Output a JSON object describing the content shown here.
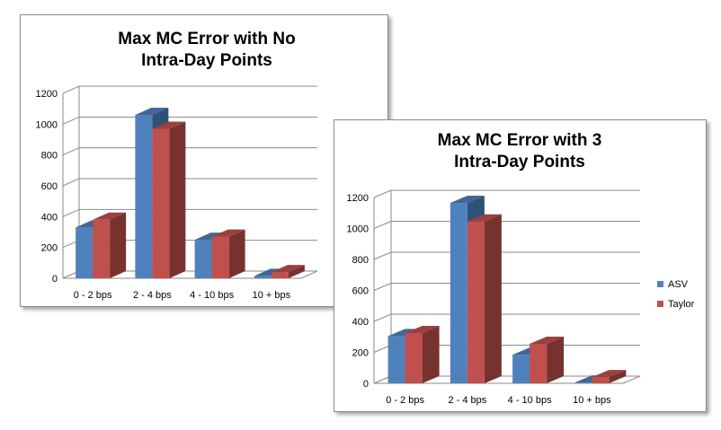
{
  "colors": {
    "asv": "#4f81bd",
    "taylor": "#c0504d"
  },
  "chart_data": [
    {
      "type": "bar",
      "title_lines": [
        "Max MC Error with No",
        "Intra-Day Points"
      ],
      "categories": [
        "0 - 2 bps",
        "2 - 4 bps",
        "4 - 10 bps",
        "10 + bps"
      ],
      "y_ticks": [
        "0",
        "200",
        "400",
        "600",
        "800",
        "1000",
        "1200"
      ],
      "ylim": [
        0,
        1200
      ],
      "grid": true,
      "legend": null,
      "series": [
        {
          "values": [
            330,
            1060,
            250,
            15
          ]
        },
        {
          "values": [
            380,
            970,
            270,
            40
          ]
        }
      ]
    },
    {
      "type": "bar",
      "title_lines": [
        "Max MC Error with 3",
        "Intra-Day Points"
      ],
      "categories": [
        "0 - 2 bps",
        "2 - 4 bps",
        "4 - 10 bps",
        "10 + bps"
      ],
      "y_ticks": [
        "0",
        "200",
        "400",
        "600",
        "800",
        "1000",
        "1200"
      ],
      "ylim": [
        0,
        1200
      ],
      "grid": true,
      "legend": "right",
      "series": [
        {
          "name": "ASV",
          "values": [
            305,
            1165,
            185,
            5
          ]
        },
        {
          "name": "Taylor",
          "values": [
            325,
            1045,
            255,
            40
          ]
        }
      ]
    }
  ]
}
